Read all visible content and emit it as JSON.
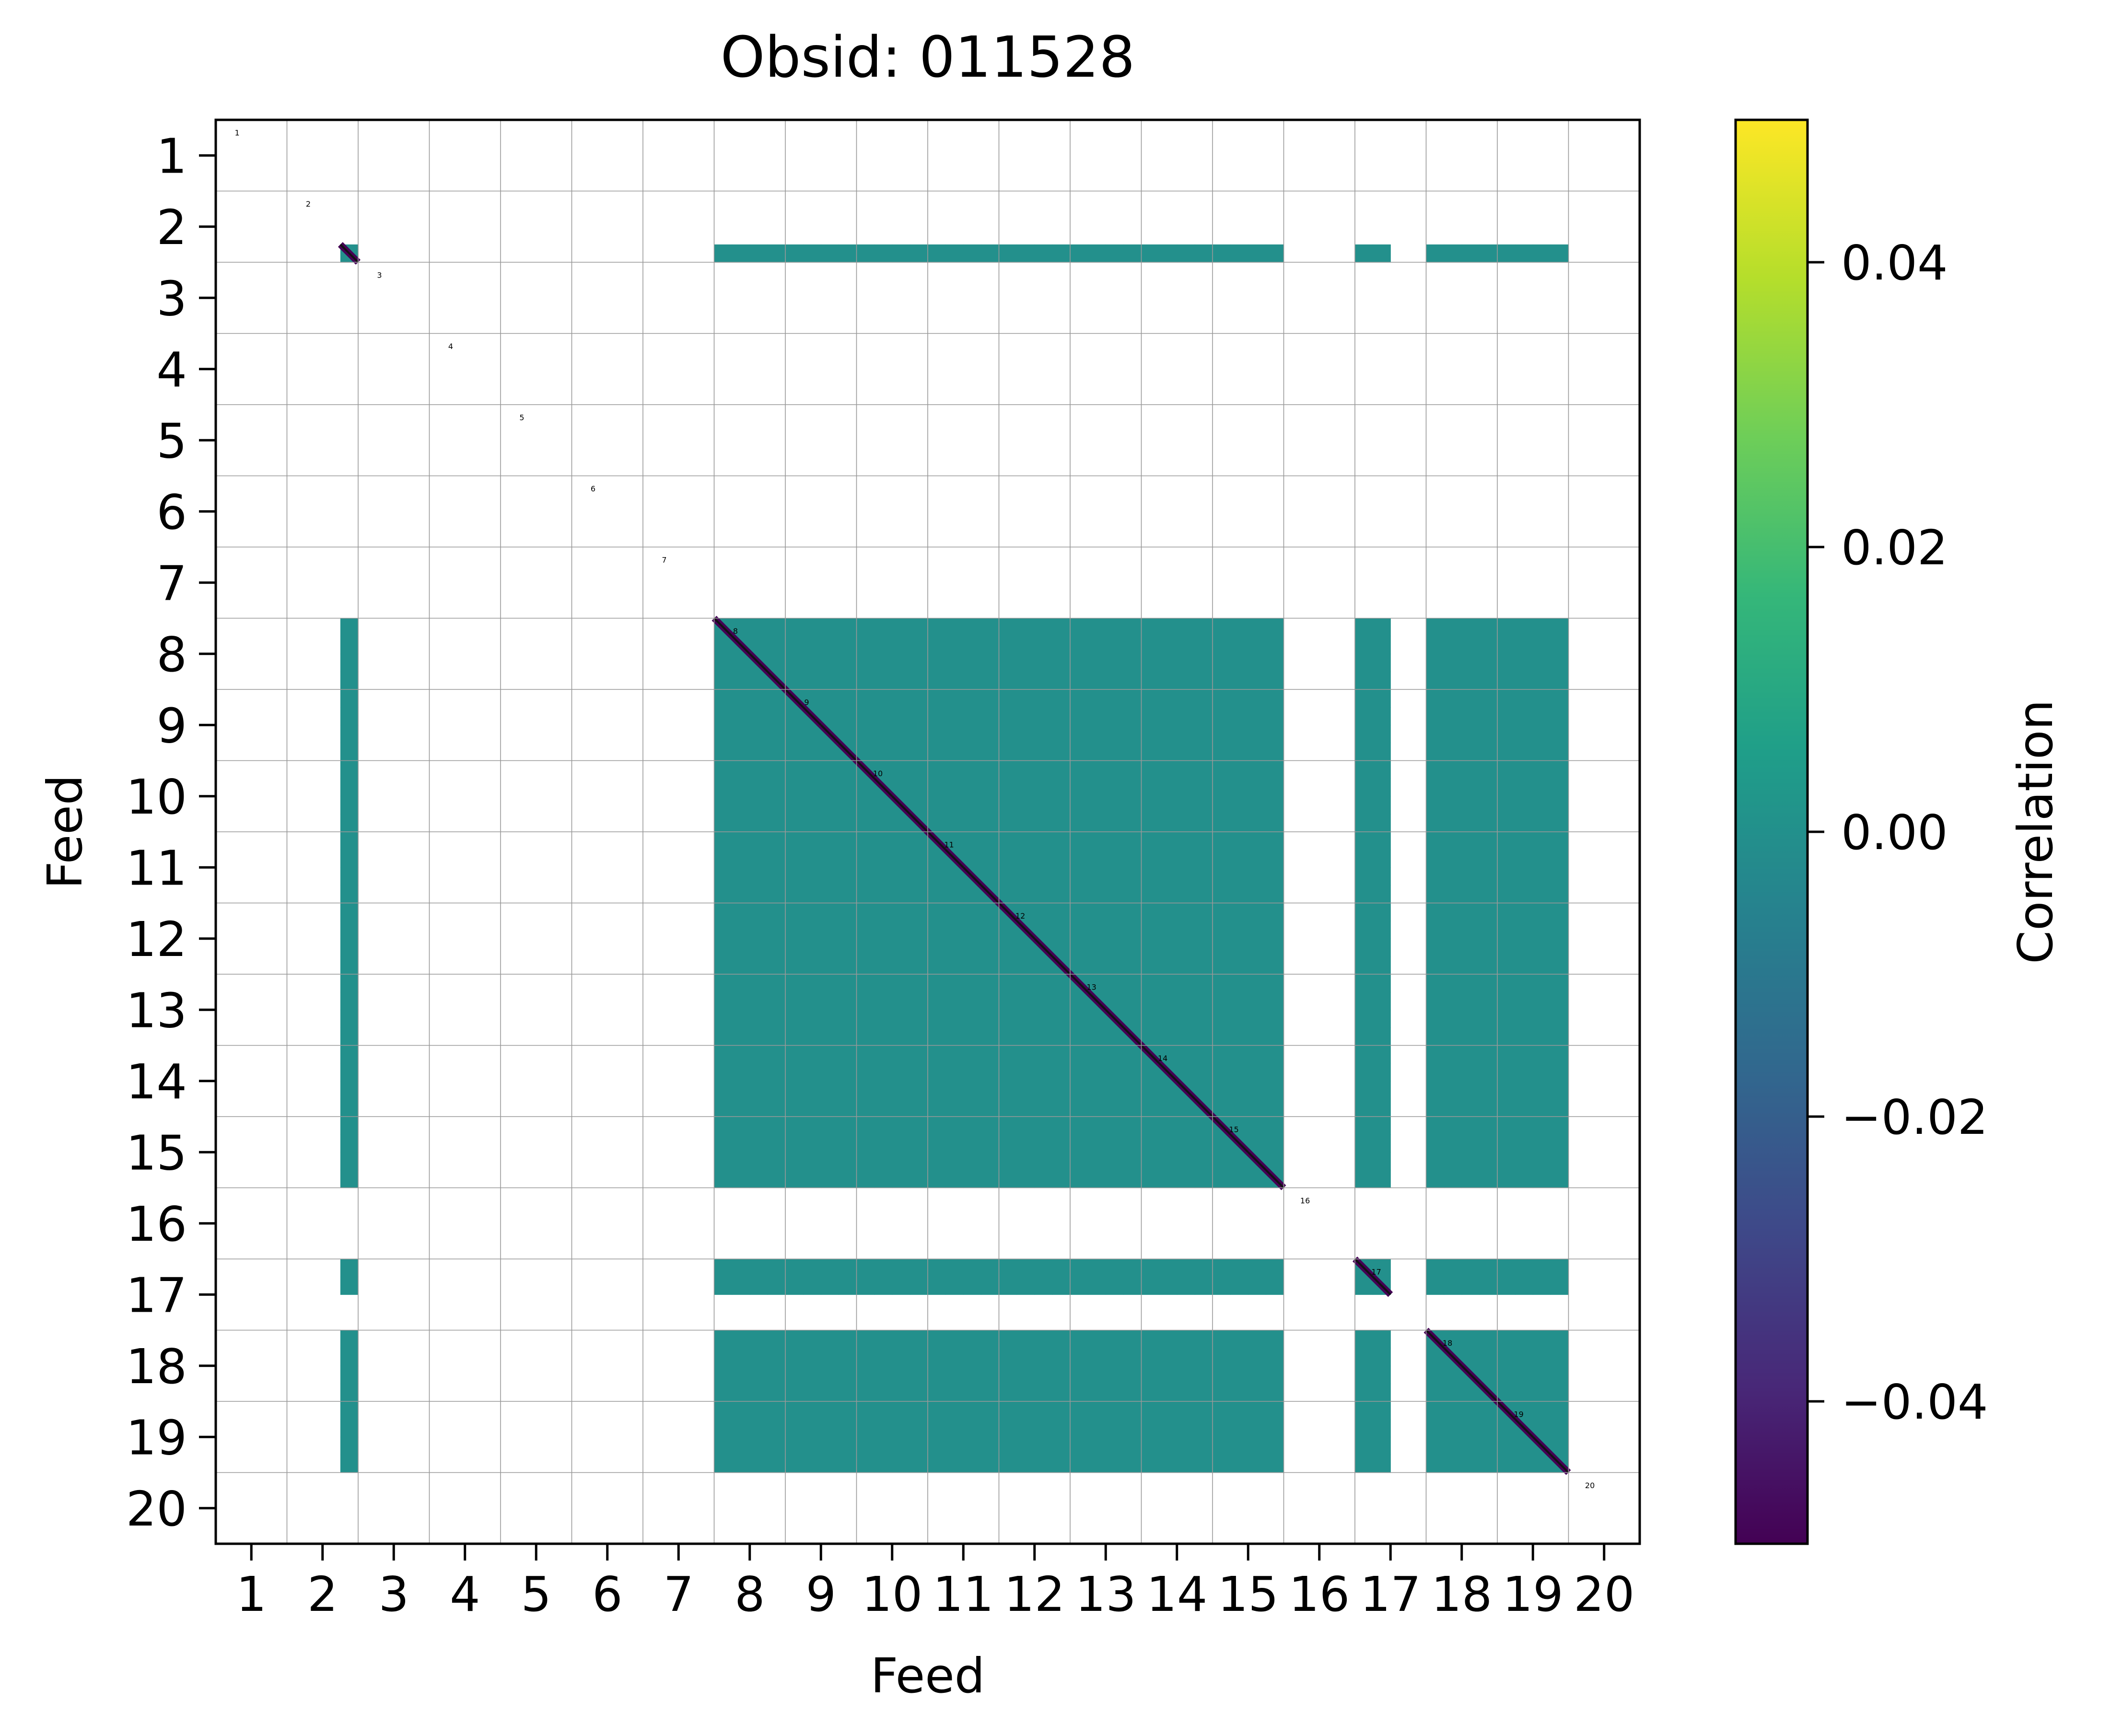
{
  "chart_data": {
    "type": "heatmap",
    "title": "Obsid: 011528",
    "xlabel": "Feed",
    "ylabel": "Feed",
    "x_ticks": [
      "1",
      "2",
      "3",
      "4",
      "5",
      "6",
      "7",
      "8",
      "9",
      "10",
      "11",
      "12",
      "13",
      "14",
      "15",
      "16",
      "17",
      "18",
      "19",
      "20"
    ],
    "y_ticks": [
      "1",
      "2",
      "3",
      "4",
      "5",
      "6",
      "7",
      "8",
      "9",
      "10",
      "11",
      "12",
      "13",
      "14",
      "15",
      "16",
      "17",
      "18",
      "19",
      "20"
    ],
    "xlim": [
      0.5,
      20.5
    ],
    "ylim": [
      20.5,
      0.5
    ],
    "grid": true,
    "diagonal_labels": [
      "1",
      "2",
      "3",
      "4",
      "5",
      "6",
      "7",
      "8",
      "9",
      "10",
      "11",
      "12",
      "13",
      "14",
      "15",
      "16",
      "17",
      "18",
      "19",
      "20"
    ],
    "active_feeds": [
      2,
      8,
      9,
      10,
      11,
      12,
      13,
      14,
      15,
      17,
      18,
      19
    ],
    "active_sidebands": {
      "2": [
        4
      ],
      "8": [
        1,
        2,
        3,
        4
      ],
      "9": [
        1,
        2,
        3,
        4
      ],
      "10": [
        1,
        2,
        3,
        4
      ],
      "11": [
        1,
        2,
        3,
        4
      ],
      "12": [
        1,
        2,
        3,
        4
      ],
      "13": [
        1,
        2,
        3,
        4
      ],
      "14": [
        1,
        2,
        3,
        4
      ],
      "15": [
        1,
        2,
        3,
        4
      ],
      "17": [
        1,
        2
      ],
      "18": [
        1,
        2,
        3,
        4
      ],
      "19": [
        1,
        2,
        3,
        4
      ]
    },
    "off_diagonal_value": 0.0,
    "diagonal_value": -0.05,
    "colorbar": {
      "label": "Correlation",
      "min": -0.05,
      "max": 0.05,
      "ticks": [
        {
          "value": 0.04,
          "label": "0.04"
        },
        {
          "value": 0.02,
          "label": "0.02"
        },
        {
          "value": 0.0,
          "label": "0.00"
        },
        {
          "value": -0.02,
          "label": "−0.02"
        },
        {
          "value": -0.04,
          "label": "−0.04"
        }
      ],
      "colormap": [
        "#440154",
        "#482878",
        "#3e4989",
        "#31688e",
        "#26828e",
        "#1f9e89",
        "#35b779",
        "#6ece58",
        "#b5de2b",
        "#fde725"
      ]
    }
  }
}
